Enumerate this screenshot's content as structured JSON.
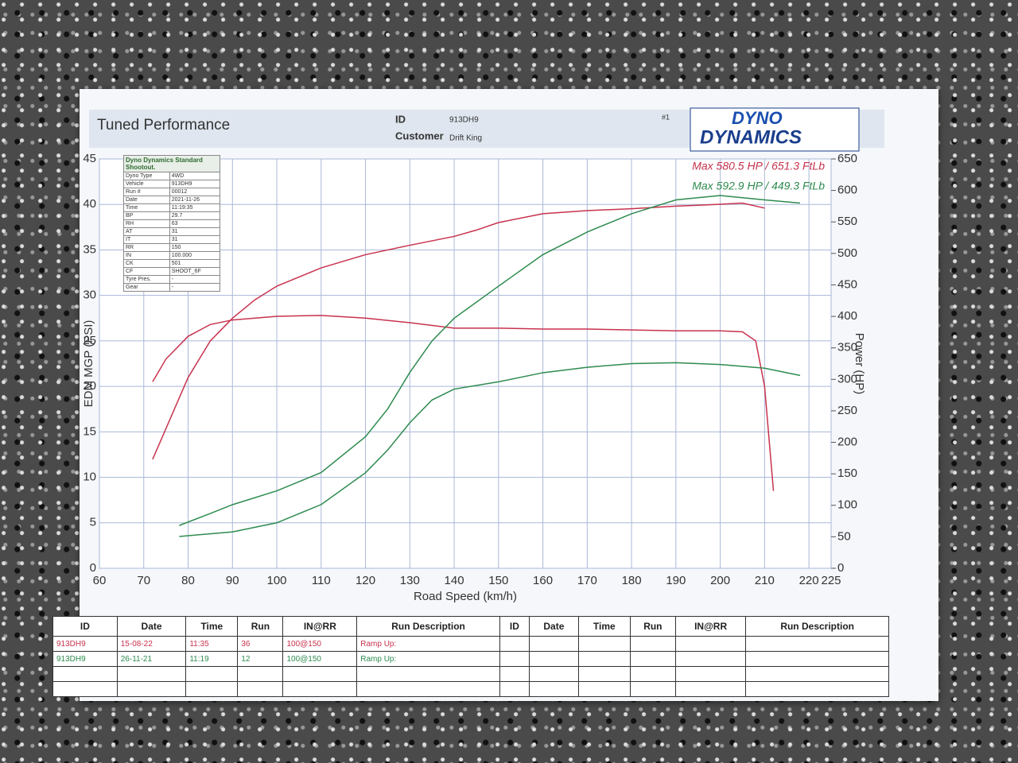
{
  "header": {
    "title": "Tuned Performance",
    "id_label": "ID",
    "id": "913DH9",
    "customer_label": "Customer",
    "customer": "Drift King",
    "sheet": "#1",
    "logo_top": "DYNO",
    "logo_bottom": "DYNAMICS"
  },
  "info_table": {
    "title": "Dyno Dynamics Standard Shootout.",
    "rows": [
      [
        "Dyno Type",
        "4WD"
      ],
      [
        "Vehicle",
        "913DH9"
      ],
      [
        "Run #",
        "00012"
      ],
      [
        "Date",
        "2021-11-26"
      ],
      [
        "Time",
        "11:19:35"
      ],
      [
        "BP",
        "29.7"
      ],
      [
        "RH",
        "63"
      ],
      [
        "AT",
        "31"
      ],
      [
        "IT",
        "31"
      ],
      [
        "RR",
        "150"
      ],
      [
        "IN",
        "100.000"
      ],
      [
        "CK",
        "501"
      ],
      [
        "CF",
        "SHOOT_6F"
      ],
      [
        "Tyre Pres.",
        "-"
      ],
      [
        "Gear",
        "-"
      ]
    ]
  },
  "chart_data": {
    "type": "line",
    "x_label": "Road Speed (km/h)",
    "y_label": "EDM MGP (PSI)",
    "y2_label": "Power (HP)",
    "xlim": [
      60,
      225
    ],
    "xticks": [
      60,
      70,
      80,
      90,
      100,
      110,
      120,
      130,
      140,
      150,
      160,
      170,
      180,
      190,
      200,
      210,
      220,
      225
    ],
    "ylim": [
      0,
      45
    ],
    "yticks": [
      0,
      5,
      10,
      15,
      20,
      25,
      30,
      35,
      40,
      45
    ],
    "y2lim": [
      0,
      650
    ],
    "y2ticks": [
      0,
      50,
      100,
      150,
      200,
      250,
      300,
      350,
      400,
      450,
      500,
      550,
      600,
      650
    ],
    "grid": true,
    "legend": "top-right",
    "series": [
      {
        "name": "Max 580.5 HP  / 651.3 FtLb",
        "color": "#c8324e",
        "axis": "y2",
        "x": [
          72,
          80,
          85,
          90,
          95,
          100,
          110,
          120,
          130,
          140,
          145,
          150,
          160,
          170,
          180,
          190,
          200,
          205,
          210
        ],
        "values": [
          173,
          303,
          361,
          397,
          426,
          448,
          477,
          498,
          513,
          527,
          537,
          549,
          563,
          568,
          571,
          575,
          578,
          580,
          572
        ]
      },
      {
        "color": "#c8324e",
        "x": [
          72,
          75,
          80,
          85,
          90,
          100,
          110,
          120,
          130,
          140,
          150,
          160,
          170,
          180,
          190,
          200,
          205,
          208,
          210,
          212
        ],
        "values": [
          20.5,
          23,
          25.5,
          26.8,
          27.3,
          27.7,
          27.8,
          27.5,
          27,
          26.4,
          26.4,
          26.3,
          26.3,
          26.2,
          26.1,
          26.1,
          26,
          25,
          20,
          8.5
        ]
      },
      {
        "name": "Max 592.9 HP  / 449.3 FtLb",
        "color": "#2e8b4f",
        "axis": "y2",
        "x": [
          78,
          85,
          90,
          100,
          110,
          120,
          125,
          130,
          135,
          140,
          150,
          160,
          170,
          180,
          190,
          200,
          210,
          218
        ],
        "values": [
          68,
          87,
          101,
          123,
          152,
          209,
          253,
          311,
          361,
          397,
          448,
          498,
          534,
          563,
          585,
          592,
          585,
          580
        ]
      },
      {
        "color": "#2e8b4f",
        "x": [
          78,
          90,
          100,
          110,
          120,
          125,
          130,
          135,
          140,
          150,
          160,
          170,
          180,
          190,
          200,
          210,
          218
        ],
        "values": [
          3.5,
          4,
          5,
          7,
          10.5,
          13,
          16,
          18.5,
          19.7,
          20.5,
          21.5,
          22.1,
          22.5,
          22.6,
          22.4,
          22,
          21.2
        ]
      }
    ]
  },
  "runs_table": {
    "headers_left": [
      "ID",
      "Date",
      "Time",
      "Run",
      "IN@RR",
      "Run Description"
    ],
    "headers_right": [
      "ID",
      "Date",
      "Time",
      "Run",
      "IN@RR",
      "Run Description"
    ],
    "rows": [
      {
        "color": "#c8324e",
        "cells": [
          "913DH9",
          "15-08-22",
          "11:35",
          "36",
          "100@150",
          "Ramp Up:"
        ]
      },
      {
        "color": "#2e8b4f",
        "cells": [
          "913DH9",
          "26-11-21",
          "11:19",
          "12",
          "100@150",
          "Ramp Up:"
        ]
      }
    ]
  }
}
